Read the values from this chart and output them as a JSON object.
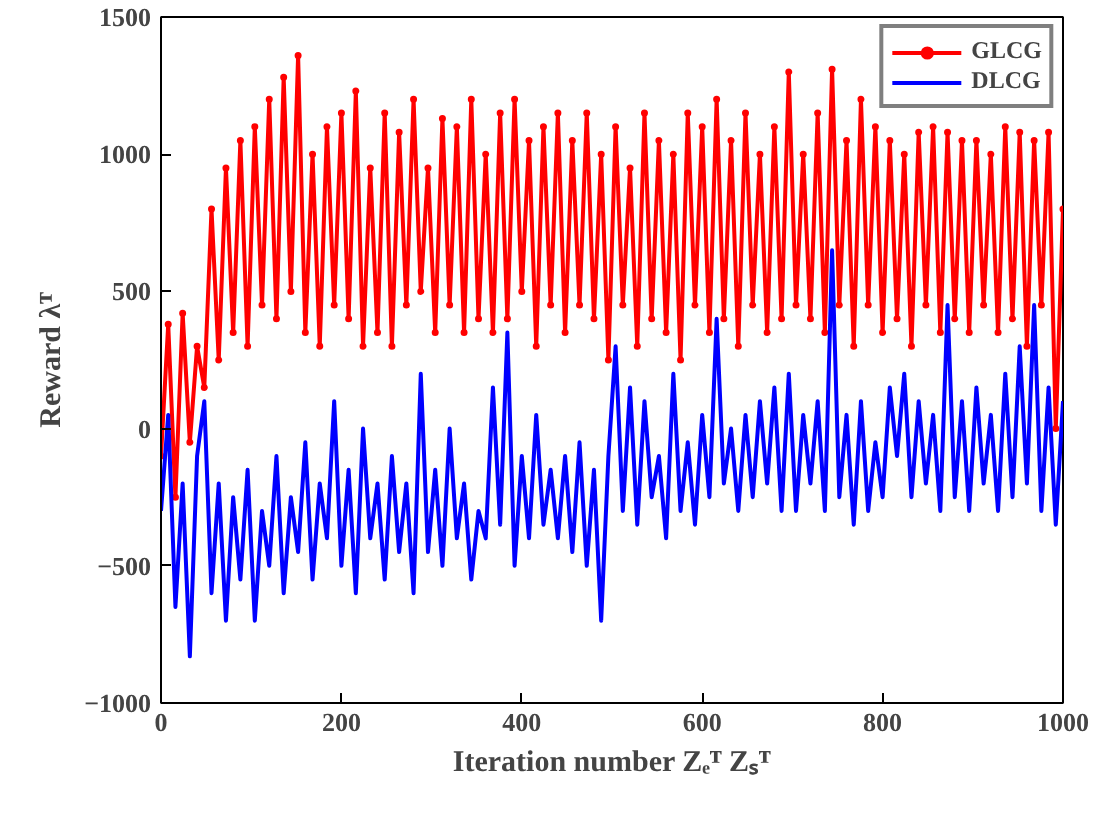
{
  "chart_data": {
    "type": "line",
    "xlabel": "Iteration number Zₑᵀ Zₛᵀ",
    "ylabel": "Reward λᵀ",
    "x": [
      0,
      8,
      16,
      24,
      32,
      40,
      48,
      56,
      64,
      72,
      80,
      88,
      96,
      104,
      112,
      120,
      128,
      136,
      144,
      152,
      160,
      168,
      176,
      184,
      192,
      200,
      208,
      216,
      224,
      232,
      240,
      248,
      256,
      264,
      272,
      280,
      288,
      296,
      304,
      312,
      320,
      328,
      336,
      344,
      352,
      360,
      368,
      376,
      384,
      392,
      400,
      408,
      416,
      424,
      432,
      440,
      448,
      456,
      464,
      472,
      480,
      488,
      496,
      504,
      512,
      520,
      528,
      536,
      544,
      552,
      560,
      568,
      576,
      584,
      592,
      600,
      608,
      616,
      624,
      632,
      640,
      648,
      656,
      664,
      672,
      680,
      688,
      696,
      704,
      712,
      720,
      728,
      736,
      744,
      752,
      760,
      768,
      776,
      784,
      792,
      800,
      808,
      816,
      824,
      832,
      840,
      848,
      856,
      864,
      872,
      880,
      888,
      896,
      904,
      912,
      920,
      928,
      936,
      944,
      952,
      960,
      968,
      976,
      984,
      992,
      1000
    ],
    "series": [
      {
        "name": "GLCG",
        "color": "#ff0000",
        "marker": "circle",
        "values": [
          -100,
          380,
          -250,
          420,
          -50,
          300,
          150,
          800,
          250,
          950,
          350,
          1050,
          300,
          1100,
          450,
          1200,
          400,
          1280,
          500,
          1360,
          350,
          1000,
          300,
          1100,
          450,
          1150,
          400,
          1230,
          300,
          950,
          350,
          1150,
          300,
          1080,
          450,
          1200,
          500,
          950,
          350,
          1130,
          450,
          1100,
          350,
          1200,
          400,
          1000,
          350,
          1150,
          400,
          1200,
          500,
          1050,
          300,
          1100,
          450,
          1150,
          350,
          1050,
          450,
          1150,
          400,
          1000,
          250,
          1100,
          450,
          950,
          300,
          1150,
          400,
          1050,
          350,
          1000,
          250,
          1150,
          450,
          1100,
          350,
          1200,
          400,
          1050,
          300,
          1150,
          450,
          1000,
          350,
          1100,
          400,
          1300,
          450,
          1000,
          400,
          1150,
          350,
          1310,
          450,
          1050,
          300,
          1200,
          450,
          1100,
          350,
          1050,
          400,
          1000,
          300,
          1080,
          450,
          1100,
          350,
          1080,
          400,
          1050,
          350,
          1050,
          450,
          1000,
          350,
          1100,
          400,
          1080,
          300,
          1050,
          450,
          1080,
          0,
          800
        ]
      },
      {
        "name": "DLCG",
        "color": "#0000ff",
        "values": [
          -300,
          50,
          -650,
          -200,
          -830,
          -100,
          100,
          -600,
          -200,
          -700,
          -250,
          -550,
          -150,
          -700,
          -300,
          -500,
          -100,
          -600,
          -250,
          -450,
          -50,
          -550,
          -200,
          -400,
          100,
          -500,
          -150,
          -600,
          0,
          -400,
          -200,
          -550,
          -100,
          -450,
          -200,
          -600,
          200,
          -450,
          -150,
          -500,
          0,
          -400,
          -200,
          -550,
          -300,
          -400,
          150,
          -350,
          350,
          -500,
          -100,
          -400,
          50,
          -350,
          -150,
          -400,
          -100,
          -450,
          -50,
          -500,
          -150,
          -700,
          -100,
          300,
          -300,
          150,
          -350,
          100,
          -250,
          -100,
          -400,
          200,
          -300,
          -50,
          -350,
          50,
          -250,
          400,
          -200,
          0,
          -300,
          50,
          -250,
          100,
          -200,
          150,
          -300,
          200,
          -300,
          50,
          -200,
          100,
          -300,
          650,
          -250,
          50,
          -350,
          100,
          -300,
          -50,
          -250,
          150,
          -100,
          200,
          -250,
          100,
          -200,
          50,
          -300,
          450,
          -250,
          100,
          -300,
          150,
          -200,
          50,
          -300,
          200,
          -250,
          300,
          -200,
          450,
          -300,
          150,
          -350,
          100
        ]
      }
    ],
    "xlim": [
      0,
      1000
    ],
    "ylim": [
      -1000,
      1500
    ],
    "xticks": [
      0,
      200,
      400,
      600,
      800,
      1000
    ],
    "yticks": [
      -1000,
      -500,
      0,
      500,
      1000,
      1500
    ],
    "grid": false,
    "legend": "top right",
    "line_style": "solid"
  }
}
